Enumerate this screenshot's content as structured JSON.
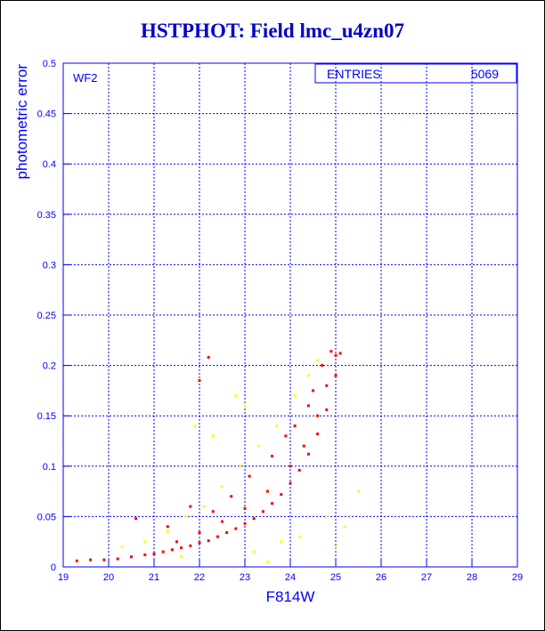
{
  "title": "HSTPHOT: Field lmc_u4zn07",
  "panel_label": "WF2",
  "stats_box": {
    "label": "ENTRIES",
    "value": "5069"
  },
  "colors": {
    "title": "#0000cc",
    "axes": "#0000ff",
    "series_primary": "#ff0000",
    "series_secondary": "#ffff00"
  },
  "chart_data": {
    "type": "scatter",
    "title": "HSTPHOT: Field lmc_u4zn07",
    "xlabel": "F814W",
    "ylabel": "photometric error",
    "xlim": [
      19,
      29
    ],
    "ylim": [
      0,
      0.5
    ],
    "xticks": [
      19,
      20,
      21,
      22,
      23,
      24,
      25,
      26,
      27,
      28,
      29
    ],
    "yticks": [
      0,
      0.05,
      0.1,
      0.15,
      0.2,
      0.25,
      0.3,
      0.35,
      0.4,
      0.45,
      0.5
    ],
    "grid": true,
    "entries": 5069,
    "series": [
      {
        "color": "#ff0000",
        "points": [
          [
            19.3,
            0.006
          ],
          [
            19.6,
            0.007
          ],
          [
            19.9,
            0.007
          ],
          [
            20.2,
            0.008
          ],
          [
            20.5,
            0.01
          ],
          [
            20.8,
            0.012
          ],
          [
            21.0,
            0.013
          ],
          [
            21.2,
            0.015
          ],
          [
            21.4,
            0.017
          ],
          [
            21.6,
            0.019
          ],
          [
            21.8,
            0.021
          ],
          [
            22.0,
            0.024
          ],
          [
            22.2,
            0.026
          ],
          [
            22.4,
            0.03
          ],
          [
            22.6,
            0.034
          ],
          [
            22.8,
            0.038
          ],
          [
            23.0,
            0.043
          ],
          [
            23.2,
            0.048
          ],
          [
            23.4,
            0.055
          ],
          [
            23.6,
            0.063
          ],
          [
            23.8,
            0.072
          ],
          [
            24.0,
            0.083
          ],
          [
            24.2,
            0.096
          ],
          [
            24.4,
            0.112
          ],
          [
            24.6,
            0.132
          ],
          [
            24.8,
            0.156
          ],
          [
            25.0,
            0.19
          ],
          [
            25.1,
            0.212
          ],
          [
            21.5,
            0.025
          ],
          [
            22.0,
            0.034
          ],
          [
            22.5,
            0.045
          ],
          [
            23.0,
            0.058
          ],
          [
            23.5,
            0.075
          ],
          [
            24.0,
            0.1
          ],
          [
            24.3,
            0.12
          ],
          [
            24.6,
            0.15
          ],
          [
            24.8,
            0.18
          ],
          [
            25.0,
            0.21
          ],
          [
            20.6,
            0.048
          ],
          [
            21.8,
            0.06
          ],
          [
            22.3,
            0.055
          ],
          [
            22.7,
            0.07
          ],
          [
            23.1,
            0.09
          ],
          [
            23.6,
            0.11
          ],
          [
            24.1,
            0.14
          ],
          [
            24.4,
            0.16
          ],
          [
            24.7,
            0.2
          ],
          [
            22.2,
            0.208
          ],
          [
            22.0,
            0.185
          ],
          [
            21.3,
            0.04
          ],
          [
            23.9,
            0.13
          ],
          [
            24.5,
            0.175
          ],
          [
            24.9,
            0.214
          ]
        ]
      },
      {
        "color": "#ffff00",
        "points": [
          [
            20.3,
            0.02
          ],
          [
            20.8,
            0.025
          ],
          [
            21.3,
            0.035
          ],
          [
            21.7,
            0.05
          ],
          [
            22.1,
            0.06
          ],
          [
            22.5,
            0.08
          ],
          [
            22.9,
            0.1
          ],
          [
            23.3,
            0.12
          ],
          [
            23.7,
            0.14
          ],
          [
            24.1,
            0.17
          ],
          [
            24.4,
            0.19
          ],
          [
            24.6,
            0.205
          ],
          [
            21.9,
            0.14
          ],
          [
            22.3,
            0.13
          ],
          [
            23.2,
            0.015
          ],
          [
            23.8,
            0.025
          ],
          [
            24.2,
            0.03
          ],
          [
            25.2,
            0.04
          ],
          [
            25.5,
            0.075
          ],
          [
            25.0,
            0.02
          ],
          [
            23.5,
            0.005
          ],
          [
            21.6,
            0.01
          ],
          [
            22.8,
            0.17
          ],
          [
            23.0,
            0.16
          ],
          [
            24.8,
            0.05
          ]
        ]
      }
    ]
  }
}
